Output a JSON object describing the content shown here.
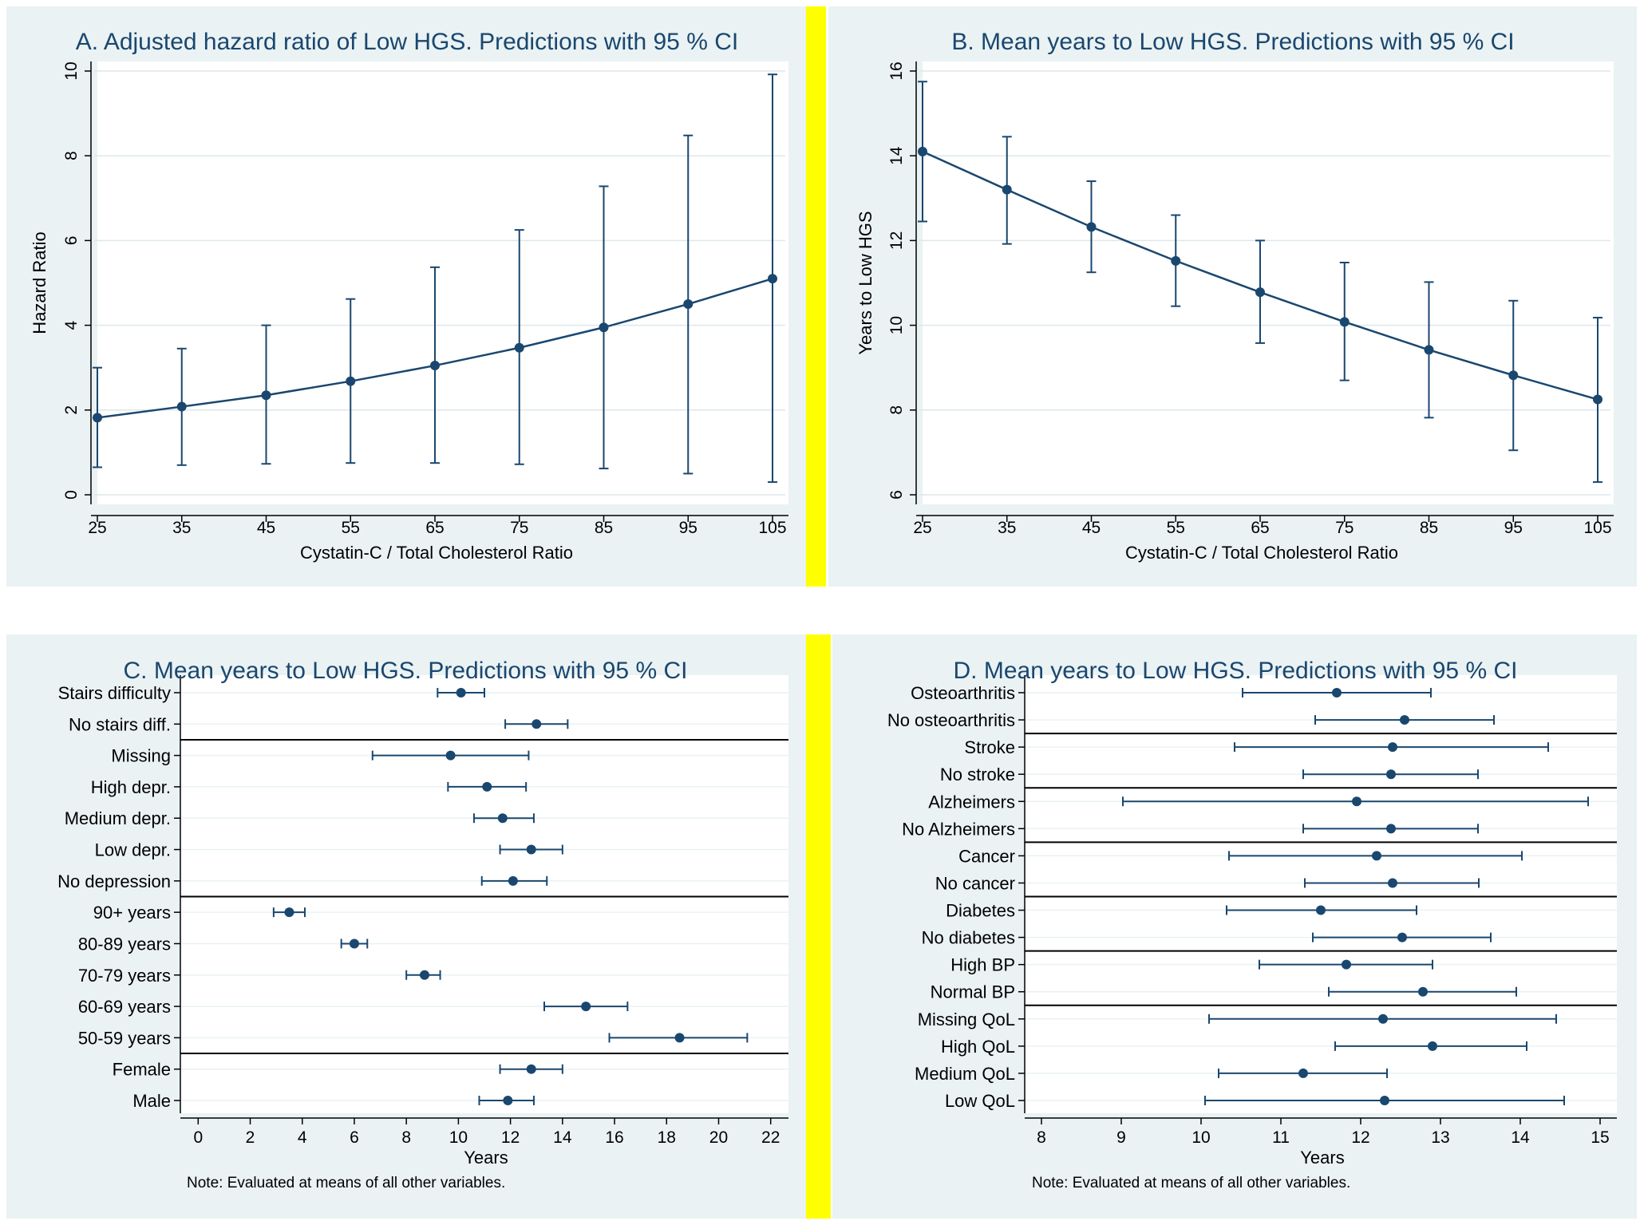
{
  "colors": {
    "series": "#1a476f",
    "panel_bg": "#eaf2f3",
    "plot_bg": "#ffffff",
    "divider": "#ffff00",
    "grid": "#eaf2f3"
  },
  "chart_data": [
    {
      "id": "A",
      "type": "line",
      "title": "A. Adjusted hazard ratio of Low HGS. Predictions with 95 % CI",
      "xlabel": "Cystatin-C / Total Cholesterol Ratio",
      "ylabel": "Hazard Ratio",
      "xlim": [
        25,
        105
      ],
      "ylim": [
        0,
        10
      ],
      "x_ticks": [
        25,
        35,
        45,
        55,
        65,
        75,
        85,
        95,
        105
      ],
      "y_ticks": [
        0,
        2,
        4,
        6,
        8,
        10
      ],
      "grid": true,
      "x": [
        25,
        35,
        45,
        55,
        65,
        75,
        85,
        95,
        105
      ],
      "series": [
        {
          "values": [
            1.82,
            2.08,
            2.35,
            2.68,
            3.05,
            3.47,
            3.95,
            4.5,
            5.1
          ],
          "lower": [
            0.65,
            0.7,
            0.73,
            0.75,
            0.75,
            0.72,
            0.62,
            0.5,
            0.3
          ],
          "upper": [
            3.0,
            3.45,
            4.0,
            4.62,
            5.37,
            6.25,
            7.28,
            8.48,
            9.92
          ]
        }
      ]
    },
    {
      "id": "B",
      "type": "line",
      "title": "B. Mean years to Low HGS. Predictions with 95 % CI",
      "xlabel": "Cystatin-C / Total Cholesterol Ratio",
      "ylabel": "Years to Low HGS",
      "xlim": [
        25,
        105
      ],
      "ylim": [
        6,
        16
      ],
      "x_ticks": [
        25,
        35,
        45,
        55,
        65,
        75,
        85,
        95,
        105
      ],
      "y_ticks": [
        6,
        8,
        10,
        12,
        14,
        16
      ],
      "grid": true,
      "x": [
        25,
        35,
        45,
        55,
        65,
        75,
        85,
        95,
        105
      ],
      "series": [
        {
          "values": [
            14.1,
            13.2,
            12.32,
            11.52,
            10.78,
            10.08,
            9.42,
            8.82,
            8.25
          ],
          "lower": [
            12.45,
            11.92,
            11.25,
            10.45,
            9.58,
            8.7,
            7.82,
            7.05,
            6.3
          ],
          "upper": [
            15.75,
            14.45,
            13.4,
            12.6,
            12.0,
            11.48,
            11.02,
            10.58,
            10.18
          ]
        }
      ]
    },
    {
      "id": "C",
      "type": "scatter",
      "title": "C. Mean years to Low HGS. Predictions with 95 % CI",
      "xlabel": "Years",
      "note": "Note: Evaluated at means of all other variables.",
      "xlim": [
        -0.5,
        22.5
      ],
      "x_ticks": [
        0,
        2,
        4,
        6,
        8,
        10,
        12,
        14,
        16,
        18,
        20,
        22
      ],
      "grid": true,
      "categories": [
        "Stairs difficulty",
        "No stairs diff.",
        "Missing",
        "High depr.",
        "Medium depr.",
        "Low depr.",
        "No depression",
        "90+ years",
        "80-89 years",
        "70-79 years",
        "60-69 years",
        "50-59 years",
        "Female",
        "Male"
      ],
      "values": [
        10.1,
        13.0,
        9.7,
        11.1,
        11.7,
        12.8,
        12.1,
        3.5,
        6.0,
        8.7,
        14.9,
        18.5,
        12.8,
        11.9
      ],
      "lower": [
        9.2,
        11.8,
        6.7,
        9.6,
        10.6,
        11.6,
        10.9,
        2.9,
        5.5,
        8.0,
        13.3,
        15.8,
        11.6,
        10.8
      ],
      "upper": [
        11.0,
        14.2,
        12.7,
        12.6,
        12.9,
        14.0,
        13.4,
        4.1,
        6.5,
        9.3,
        16.5,
        21.1,
        14.0,
        12.9
      ],
      "separators_after": [
        1,
        6,
        11
      ]
    },
    {
      "id": "D",
      "type": "scatter",
      "title": "D. Mean years to Low HGS. Predictions with 95 % CI",
      "xlabel": "Years",
      "note": "Note: Evaluated at means of all other variables.",
      "xlim": [
        7.85,
        15.15
      ],
      "x_ticks": [
        8,
        9,
        10,
        11,
        12,
        13,
        14,
        15
      ],
      "grid": true,
      "categories": [
        "Osteoarthritis",
        "No osteoarthritis",
        "Stroke",
        "No stroke",
        "Alzheimers",
        "No Alzheimers",
        "Cancer",
        "No cancer",
        "Diabetes",
        "No diabetes",
        "High BP",
        "Normal BP",
        "Missing QoL",
        "High QoL",
        "Medium QoL",
        "Low QoL"
      ],
      "values": [
        11.7,
        12.55,
        12.4,
        12.38,
        11.95,
        12.38,
        12.2,
        12.4,
        11.5,
        12.52,
        11.82,
        12.78,
        12.28,
        12.9,
        11.28,
        12.3
      ],
      "lower": [
        10.52,
        11.43,
        10.42,
        11.28,
        9.02,
        11.28,
        10.35,
        11.3,
        10.32,
        11.4,
        10.73,
        11.6,
        10.1,
        11.68,
        10.22,
        10.05
      ],
      "upper": [
        12.88,
        13.67,
        14.35,
        13.47,
        14.85,
        13.47,
        14.02,
        13.48,
        12.7,
        13.63,
        12.9,
        13.95,
        14.45,
        14.08,
        12.33,
        14.55
      ],
      "separators_after": [
        1,
        3,
        5,
        7,
        9,
        11
      ]
    }
  ]
}
